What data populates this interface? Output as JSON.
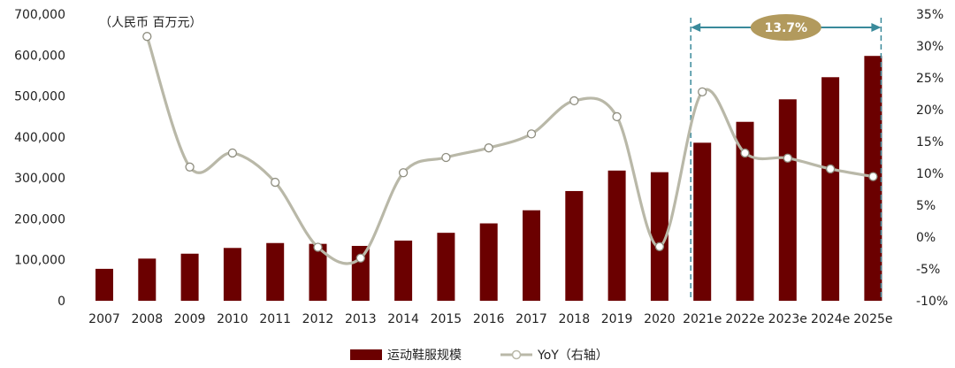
{
  "chart_data": {
    "type": "bar+line",
    "unit_label": "（人民币  百万元）",
    "categories": [
      "2007",
      "2008",
      "2009",
      "2010",
      "2011",
      "2012",
      "2013",
      "2014",
      "2015",
      "2016",
      "2017",
      "2018",
      "2019",
      "2020",
      "2021e",
      "2022e",
      "2023e",
      "2024e",
      "2025e"
    ],
    "series": [
      {
        "name": "运动鞋服规模",
        "type": "bar",
        "axis": "left",
        "color": "#6b0000",
        "values": [
          78000,
          103000,
          115000,
          129000,
          141000,
          139000,
          134000,
          147000,
          166000,
          189000,
          221000,
          268000,
          318000,
          314000,
          386000,
          437000,
          492000,
          546000,
          598000
        ]
      },
      {
        "name": "YoY（右轴）",
        "type": "line",
        "axis": "right",
        "color": "#b9b8a8",
        "values": [
          null,
          31.5,
          11.0,
          13.2,
          8.6,
          -1.6,
          -3.3,
          10.1,
          12.5,
          14.0,
          16.2,
          21.4,
          18.9,
          -1.5,
          22.8,
          13.2,
          12.4,
          10.7,
          9.5
        ]
      }
    ],
    "y_left": {
      "min": 0,
      "max": 700000,
      "step": 100000,
      "ticks": [
        "0",
        "100,000",
        "200,000",
        "300,000",
        "400,000",
        "500,000",
        "600,000",
        "700,000"
      ]
    },
    "y_right": {
      "min": -10,
      "max": 35,
      "step": 5,
      "ticks": [
        "-10%",
        "-5%",
        "0%",
        "5%",
        "10%",
        "15%",
        "20%",
        "25%",
        "30%",
        "35%"
      ]
    },
    "annotation": {
      "label": "13.7%",
      "from": "2021e",
      "to": "2025e",
      "color": "#b29a5d",
      "arrow_color": "#3a8a9b"
    },
    "grid": false,
    "legend_position": "bottom"
  }
}
